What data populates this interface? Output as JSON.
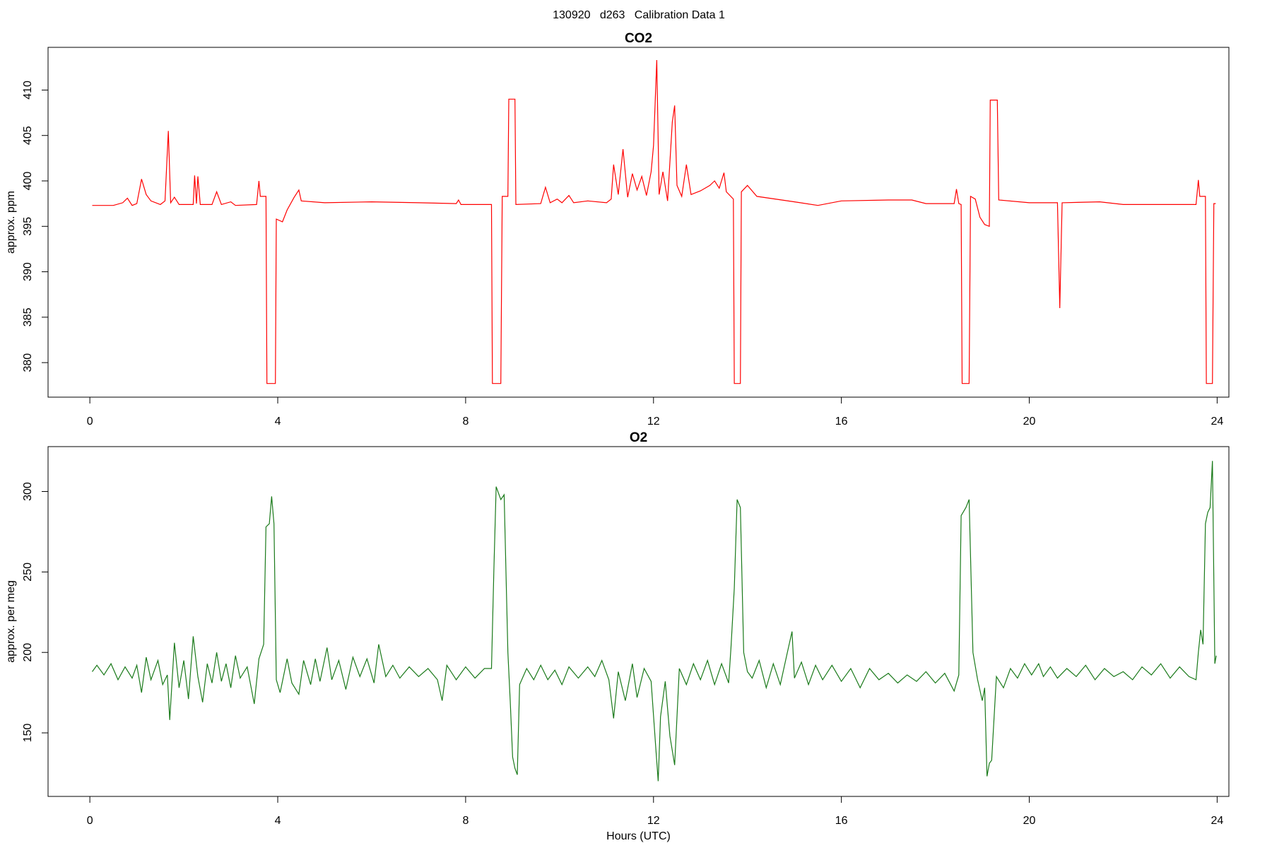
{
  "title": "130920   d263   Calibration Data 1",
  "chart_data": [
    {
      "type": "line",
      "title": "CO2",
      "y_label": "approx. ppm",
      "x": [
        0.05,
        0.5,
        0.7,
        0.8,
        0.9,
        1.0,
        1.1,
        1.2,
        1.3,
        1.5,
        1.6,
        1.67,
        1.72,
        1.8,
        1.9,
        2.2,
        2.23,
        2.27,
        2.3,
        2.35,
        2.6,
        2.7,
        2.8,
        3.0,
        3.1,
        3.55,
        3.6,
        3.63,
        3.75,
        3.77,
        3.95,
        3.97,
        4.1,
        4.2,
        4.35,
        4.45,
        4.5,
        5.0,
        6.0,
        7.0,
        7.8,
        7.85,
        7.9,
        8.55,
        8.57,
        8.75,
        8.78,
        8.9,
        8.92,
        9.05,
        9.07,
        9.6,
        9.7,
        9.8,
        9.95,
        10.05,
        10.2,
        10.3,
        10.6,
        11.0,
        11.1,
        11.15,
        11.25,
        11.35,
        11.45,
        11.55,
        11.65,
        11.75,
        11.85,
        11.95,
        12.0,
        12.07,
        12.12,
        12.2,
        12.3,
        12.4,
        12.45,
        12.5,
        12.6,
        12.7,
        12.8,
        13.0,
        13.2,
        13.3,
        13.4,
        13.5,
        13.55,
        13.7,
        13.72,
        13.85,
        13.87,
        14.0,
        14.2,
        15.0,
        15.5,
        16.0,
        17.0,
        17.5,
        17.8,
        18.4,
        18.45,
        18.5,
        18.55,
        18.57,
        18.72,
        18.75,
        18.85,
        18.95,
        19.05,
        19.15,
        19.17,
        19.32,
        19.35,
        20.0,
        20.6,
        20.65,
        20.7,
        21.5,
        22.0,
        23.55,
        23.6,
        23.63,
        23.75,
        23.77,
        23.9,
        23.93,
        23.97
      ],
      "series": [
        {
          "color": "#ff0000",
          "values": [
            397.3,
            397.3,
            397.6,
            398.1,
            397.3,
            397.5,
            400.2,
            398.5,
            397.8,
            397.4,
            397.8,
            405.5,
            397.6,
            398.2,
            397.4,
            397.4,
            400.6,
            397.5,
            400.5,
            397.4,
            397.4,
            398.8,
            397.4,
            397.7,
            397.3,
            397.4,
            400.0,
            398.3,
            398.3,
            377.7,
            377.7,
            395.8,
            395.5,
            396.8,
            398.2,
            399.0,
            397.8,
            397.6,
            397.7,
            397.6,
            397.5,
            397.9,
            397.4,
            397.4,
            377.7,
            377.7,
            398.3,
            398.3,
            409.0,
            409.0,
            397.4,
            397.5,
            399.3,
            397.6,
            398.0,
            397.6,
            398.4,
            397.6,
            397.8,
            397.6,
            398.0,
            401.8,
            398.5,
            403.5,
            398.2,
            400.8,
            399.0,
            400.5,
            398.4,
            401.0,
            403.9,
            413.3,
            398.5,
            401.0,
            397.8,
            406.5,
            408.3,
            399.5,
            398.3,
            401.8,
            398.5,
            398.9,
            399.5,
            400.0,
            399.2,
            400.9,
            398.8,
            398.0,
            377.7,
            377.7,
            398.8,
            399.5,
            398.3,
            397.7,
            397.3,
            397.8,
            397.9,
            397.9,
            397.5,
            397.5,
            399.1,
            397.5,
            397.4,
            377.7,
            377.7,
            398.3,
            398.0,
            396.0,
            395.2,
            395.0,
            408.9,
            408.9,
            397.9,
            397.6,
            397.6,
            386.0,
            397.6,
            397.7,
            397.4,
            397.4,
            400.1,
            398.3,
            398.3,
            377.7,
            377.7,
            397.5,
            397.5
          ]
        }
      ],
      "xlim": [
        -0.89,
        24.25
      ],
      "ylim": [
        376.2,
        414.7
      ],
      "xticks": [
        0,
        4,
        8,
        12,
        16,
        20,
        24
      ],
      "yticks": [
        380,
        385,
        390,
        395,
        400,
        405,
        410
      ]
    },
    {
      "type": "line",
      "title": "O2",
      "y_label": "approx. per meg",
      "x_label": "Hours (UTC)",
      "x": [
        0.05,
        0.15,
        0.3,
        0.45,
        0.6,
        0.75,
        0.9,
        1.0,
        1.1,
        1.2,
        1.3,
        1.45,
        1.55,
        1.65,
        1.7,
        1.8,
        1.9,
        2.0,
        2.1,
        2.2,
        2.3,
        2.4,
        2.5,
        2.6,
        2.7,
        2.8,
        2.9,
        3.0,
        3.1,
        3.2,
        3.35,
        3.5,
        3.6,
        3.7,
        3.75,
        3.82,
        3.87,
        3.92,
        3.97,
        4.05,
        4.2,
        4.3,
        4.45,
        4.55,
        4.7,
        4.8,
        4.9,
        5.05,
        5.15,
        5.3,
        5.45,
        5.6,
        5.75,
        5.9,
        6.05,
        6.15,
        6.3,
        6.45,
        6.6,
        6.8,
        7.0,
        7.2,
        7.4,
        7.5,
        7.6,
        7.8,
        8.0,
        8.2,
        8.4,
        8.55,
        8.6,
        8.65,
        8.75,
        8.82,
        8.9,
        8.95,
        9.0,
        9.05,
        9.1,
        9.15,
        9.3,
        9.45,
        9.6,
        9.75,
        9.9,
        10.05,
        10.2,
        10.4,
        10.6,
        10.75,
        10.9,
        11.05,
        11.15,
        11.25,
        11.4,
        11.55,
        11.65,
        11.8,
        11.95,
        12.05,
        12.1,
        12.15,
        12.25,
        12.35,
        12.45,
        12.55,
        12.7,
        12.85,
        13.0,
        13.15,
        13.3,
        13.45,
        13.6,
        13.65,
        13.72,
        13.78,
        13.85,
        13.92,
        14.0,
        14.1,
        14.25,
        14.4,
        14.55,
        14.7,
        14.85,
        14.95,
        15.0,
        15.15,
        15.3,
        15.45,
        15.6,
        15.8,
        16.0,
        16.2,
        16.4,
        16.6,
        16.8,
        17.0,
        17.2,
        17.4,
        17.6,
        17.8,
        18.0,
        18.2,
        18.4,
        18.5,
        18.55,
        18.65,
        18.72,
        18.8,
        18.9,
        19.0,
        19.05,
        19.1,
        19.15,
        19.2,
        19.3,
        19.45,
        19.6,
        19.75,
        19.9,
        20.05,
        20.2,
        20.3,
        20.45,
        20.6,
        20.8,
        21.0,
        21.2,
        21.4,
        21.6,
        21.8,
        22.0,
        22.2,
        22.4,
        22.6,
        22.8,
        23.0,
        23.2,
        23.4,
        23.55,
        23.6,
        23.65,
        23.7,
        23.75,
        23.8,
        23.85,
        23.9,
        23.95,
        23.98
      ],
      "series": [
        {
          "color": "#1a7a1a",
          "values": [
            188,
            192,
            186,
            193,
            183,
            191,
            184,
            192,
            175,
            197,
            183,
            195,
            180,
            186,
            158,
            206,
            178,
            195,
            171,
            210,
            185,
            169,
            193,
            181,
            200,
            182,
            193,
            178,
            198,
            184,
            191,
            168,
            196,
            205,
            278,
            280,
            297,
            280,
            183,
            175,
            196,
            181,
            174,
            195,
            180,
            196,
            182,
            203,
            183,
            195,
            177,
            197,
            185,
            196,
            181,
            205,
            185,
            192,
            184,
            191,
            185,
            190,
            183,
            170,
            192,
            183,
            191,
            184,
            190,
            190,
            250,
            303,
            295,
            298,
            200,
            170,
            135,
            128,
            124,
            180,
            190,
            183,
            192,
            183,
            189,
            180,
            191,
            184,
            191,
            185,
            195,
            183,
            159,
            188,
            170,
            193,
            172,
            190,
            182,
            140,
            120,
            160,
            182,
            148,
            130,
            190,
            180,
            193,
            183,
            195,
            180,
            193,
            181,
            203,
            240,
            295,
            290,
            200,
            188,
            184,
            195,
            178,
            193,
            180,
            200,
            213,
            184,
            194,
            180,
            192,
            183,
            192,
            182,
            190,
            178,
            190,
            183,
            187,
            181,
            186,
            182,
            188,
            181,
            187,
            176,
            186,
            285,
            290,
            295,
            200,
            183,
            170,
            178,
            123,
            131,
            133,
            185,
            178,
            190,
            184,
            193,
            186,
            193,
            185,
            191,
            184,
            190,
            185,
            192,
            183,
            190,
            185,
            188,
            183,
            191,
            186,
            193,
            184,
            191,
            185,
            183,
            200,
            214,
            205,
            280,
            287,
            290,
            319,
            193,
            198
          ]
        }
      ],
      "xlim": [
        -0.89,
        24.25
      ],
      "ylim": [
        110.5,
        327.9
      ],
      "xticks": [
        0,
        4,
        8,
        12,
        16,
        20,
        24
      ],
      "yticks": [
        150,
        200,
        250,
        300
      ]
    }
  ]
}
